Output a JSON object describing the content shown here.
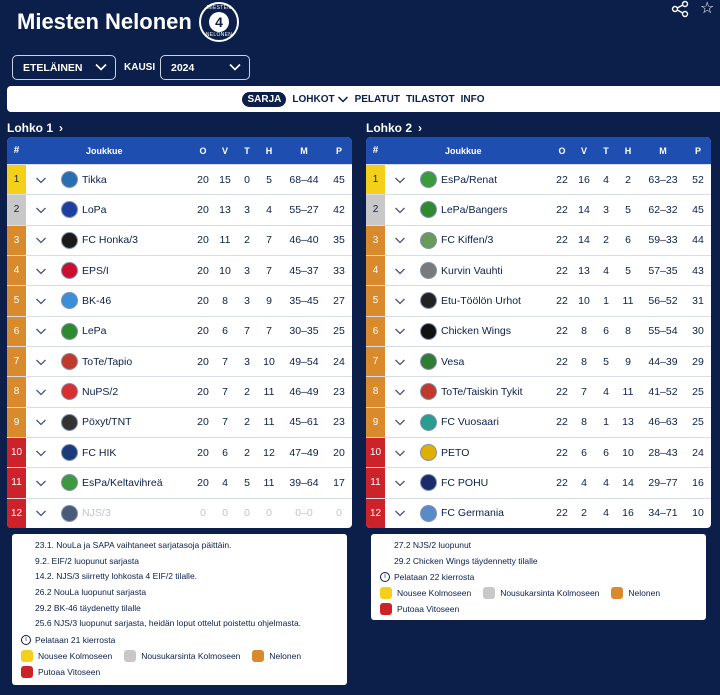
{
  "header": {
    "title": "Miesten Nelonen",
    "logo_top": "MIESTEN",
    "logo_num": "4",
    "logo_bottom": "NELONEN"
  },
  "filters": {
    "region": "ETELÄINEN",
    "season_label": "KAUSI",
    "season": "2024"
  },
  "nav": [
    {
      "label": "SARJA",
      "active": true,
      "dropdown": false
    },
    {
      "label": "LOHKOT",
      "active": false,
      "dropdown": true
    },
    {
      "label": "PELATUT",
      "active": false,
      "dropdown": false
    },
    {
      "label": "TILASTOT",
      "active": false,
      "dropdown": false
    },
    {
      "label": "INFO",
      "active": false,
      "dropdown": false
    }
  ],
  "columns": {
    "rank": "#",
    "team": "Joukkue",
    "o": "O",
    "v": "V",
    "t": "T",
    "h": "H",
    "m": "M",
    "p": "P"
  },
  "colors": {
    "promote": "#f4d01a",
    "playoff": "#c8c8c8",
    "stay": "#d98a2c",
    "relegate": "#cc2229"
  },
  "groups": [
    {
      "name": "Lohko 1",
      "rows": [
        {
          "rank": "1",
          "status": "promote",
          "team": "Tikka",
          "logo": "#2a6db0",
          "o": "20",
          "v": "15",
          "t": "0",
          "h": "5",
          "m": "68–44",
          "p": "45"
        },
        {
          "rank": "2",
          "status": "playoff",
          "team": "LoPa",
          "logo": "#1d3fa0",
          "o": "20",
          "v": "13",
          "t": "3",
          "h": "4",
          "m": "55–27",
          "p": "42"
        },
        {
          "rank": "3",
          "status": "stay",
          "team": "FC Honka/3",
          "logo": "#1a1a1a",
          "o": "20",
          "v": "11",
          "t": "2",
          "h": "7",
          "m": "46–40",
          "p": "35"
        },
        {
          "rank": "4",
          "status": "stay",
          "team": "EPS/I",
          "logo": "#c8102e",
          "o": "20",
          "v": "10",
          "t": "3",
          "h": "7",
          "m": "45–37",
          "p": "33"
        },
        {
          "rank": "5",
          "status": "stay",
          "team": "BK-46",
          "logo": "#3a8fd8",
          "o": "20",
          "v": "8",
          "t": "3",
          "h": "9",
          "m": "35–45",
          "p": "27"
        },
        {
          "rank": "6",
          "status": "stay",
          "team": "LePa",
          "logo": "#2f8a2f",
          "o": "20",
          "v": "6",
          "t": "7",
          "h": "7",
          "m": "30–35",
          "p": "25"
        },
        {
          "rank": "7",
          "status": "stay",
          "team": "ToTe/Tapio",
          "logo": "#c0392b",
          "o": "20",
          "v": "7",
          "t": "3",
          "h": "10",
          "m": "49–54",
          "p": "24"
        },
        {
          "rank": "8",
          "status": "stay",
          "team": "NuPS/2",
          "logo": "#d63031",
          "o": "20",
          "v": "7",
          "t": "2",
          "h": "11",
          "m": "46–49",
          "p": "23"
        },
        {
          "rank": "9",
          "status": "stay",
          "team": "Pöxyt/TNT",
          "logo": "#333333",
          "o": "20",
          "v": "7",
          "t": "2",
          "h": "11",
          "m": "45–61",
          "p": "23"
        },
        {
          "rank": "10",
          "status": "relegate",
          "team": "FC HIK",
          "logo": "#1b3a7a",
          "o": "20",
          "v": "6",
          "t": "2",
          "h": "12",
          "m": "47–49",
          "p": "20"
        },
        {
          "rank": "11",
          "status": "relegate",
          "team": "EsPa/Keltavihreä",
          "logo": "#3c9a3c",
          "o": "20",
          "v": "4",
          "t": "5",
          "h": "11",
          "m": "39–64",
          "p": "17"
        },
        {
          "rank": "12",
          "status": "relegate",
          "team": "NJS/3",
          "logo": "#4a5a7a",
          "o": "0",
          "v": "0",
          "t": "0",
          "h": "0",
          "m": "0–0",
          "p": "0",
          "dim": true
        }
      ],
      "notes": [
        "23.1. NouLa ja SAPA vaihtaneet sarjatasoja päittäin.",
        "9.2. EIF/2 luopunut sarjasta",
        "14.2. NJS/3 siirretty lohkosta 4 EIF/2 tilalle.",
        "26.2 NouLa luopunut sarjasta",
        "29.2 BK-46 täydenetty tilalle",
        "25.6 NJS/3 luopunut sarjasta, heidän loput ottelut poistettu ohjelmasta."
      ],
      "rounds": "Pelataan 21 kierrosta"
    },
    {
      "name": "Lohko 2",
      "rows": [
        {
          "rank": "1",
          "status": "promote",
          "team": "EsPa/Renat",
          "logo": "#3c9a3c",
          "o": "22",
          "v": "16",
          "t": "4",
          "h": "2",
          "m": "63–23",
          "p": "52"
        },
        {
          "rank": "2",
          "status": "playoff",
          "team": "LePa/Bangers",
          "logo": "#2f8a2f",
          "o": "22",
          "v": "14",
          "t": "3",
          "h": "5",
          "m": "62–32",
          "p": "45"
        },
        {
          "rank": "3",
          "status": "stay",
          "team": "FC Kiffen/3",
          "logo": "#6a9a5a",
          "o": "22",
          "v": "14",
          "t": "2",
          "h": "6",
          "m": "59–33",
          "p": "44"
        },
        {
          "rank": "4",
          "status": "stay",
          "team": "Kurvin Vauhti",
          "logo": "#7a7a7a",
          "o": "22",
          "v": "13",
          "t": "4",
          "h": "5",
          "m": "57–35",
          "p": "43"
        },
        {
          "rank": "5",
          "status": "stay",
          "team": "Etu-Töölön Urhot",
          "logo": "#222222",
          "o": "22",
          "v": "10",
          "t": "1",
          "h": "11",
          "m": "56–52",
          "p": "31"
        },
        {
          "rank": "6",
          "status": "stay",
          "team": "Chicken Wings",
          "logo": "#111111",
          "o": "22",
          "v": "8",
          "t": "6",
          "h": "8",
          "m": "55–54",
          "p": "30"
        },
        {
          "rank": "7",
          "status": "stay",
          "team": "Vesa",
          "logo": "#2e7d32",
          "o": "22",
          "v": "8",
          "t": "5",
          "h": "9",
          "m": "44–39",
          "p": "29"
        },
        {
          "rank": "8",
          "status": "stay",
          "team": "ToTe/Taiskin Tykit",
          "logo": "#c0392b",
          "o": "22",
          "v": "7",
          "t": "4",
          "h": "11",
          "m": "41–52",
          "p": "25"
        },
        {
          "rank": "9",
          "status": "stay",
          "team": "FC Vuosaari",
          "logo": "#2a9d8f",
          "o": "22",
          "v": "8",
          "t": "1",
          "h": "13",
          "m": "46–63",
          "p": "25"
        },
        {
          "rank": "10",
          "status": "relegate",
          "team": "PETO",
          "logo": "#e0b000",
          "o": "22",
          "v": "6",
          "t": "6",
          "h": "10",
          "m": "28–43",
          "p": "24"
        },
        {
          "rank": "11",
          "status": "relegate",
          "team": "FC POHU",
          "logo": "#1b2a6a",
          "o": "22",
          "v": "4",
          "t": "4",
          "h": "14",
          "m": "29–77",
          "p": "16"
        },
        {
          "rank": "12",
          "status": "relegate",
          "team": "FC Germania",
          "logo": "#5a8ac8",
          "o": "22",
          "v": "2",
          "t": "4",
          "h": "16",
          "m": "34–71",
          "p": "10"
        }
      ],
      "notes": [
        "27.2 NJS/2 luopunut",
        "29.2 Chicken Wings täydennetty tilalle"
      ],
      "rounds": "Pelataan 22 kierrosta"
    }
  ],
  "legend": [
    {
      "key": "promote",
      "label": "Nousee Kolmoseen"
    },
    {
      "key": "playoff",
      "label": "Nousukarsinta Kolmoseen"
    },
    {
      "key": "stay",
      "label": "Nelonen"
    },
    {
      "key": "relegate",
      "label": "Putoaa Vitoseen"
    }
  ]
}
